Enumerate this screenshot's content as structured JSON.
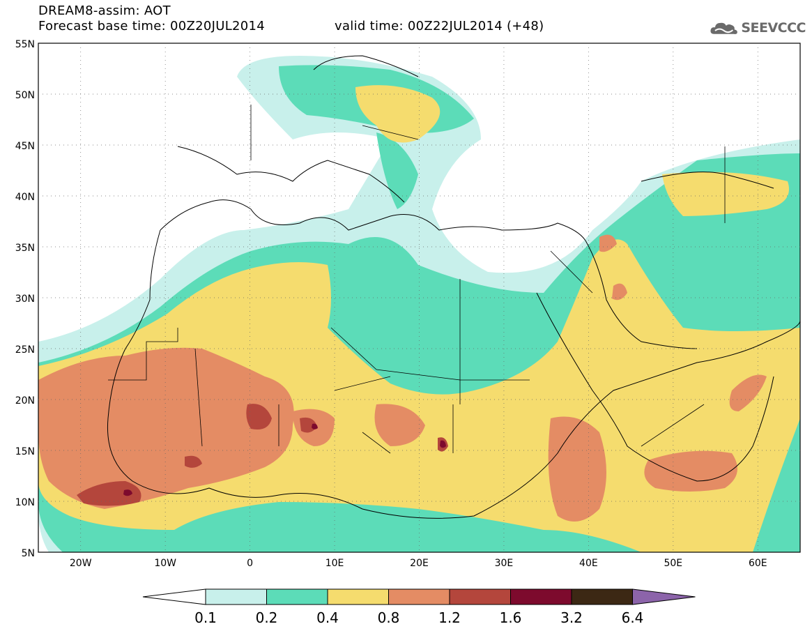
{
  "header": {
    "title": "DREAM8-assim: AOT",
    "base_time": "Forecast base time: 00Z20JUL2014",
    "valid_time": "valid time: 00Z22JUL2014 (+48)"
  },
  "logo": {
    "text": "SEEVCCC",
    "icon": "cloud-icon"
  },
  "map": {
    "lat_labels": [
      "55N",
      "50N",
      "45N",
      "40N",
      "35N",
      "30N",
      "25N",
      "20N",
      "15N",
      "10N",
      "5N"
    ],
    "lon_labels": [
      "20W",
      "10W",
      "0",
      "10E",
      "20E",
      "30E",
      "40E",
      "50E",
      "60E"
    ],
    "lon_range": [
      -25,
      65
    ],
    "lat_range": [
      5,
      55
    ]
  },
  "colorbar": {
    "labels": [
      "0.1",
      "0.2",
      "0.4",
      "0.8",
      "1.2",
      "1.6",
      "3.2",
      "6.4"
    ],
    "colors": [
      "#c8f0eb",
      "#5cdcb8",
      "#f5dc6e",
      "#e48c64",
      "#b4463c",
      "#7d0a2d",
      "#3c2814",
      "#8c64aa"
    ]
  }
}
